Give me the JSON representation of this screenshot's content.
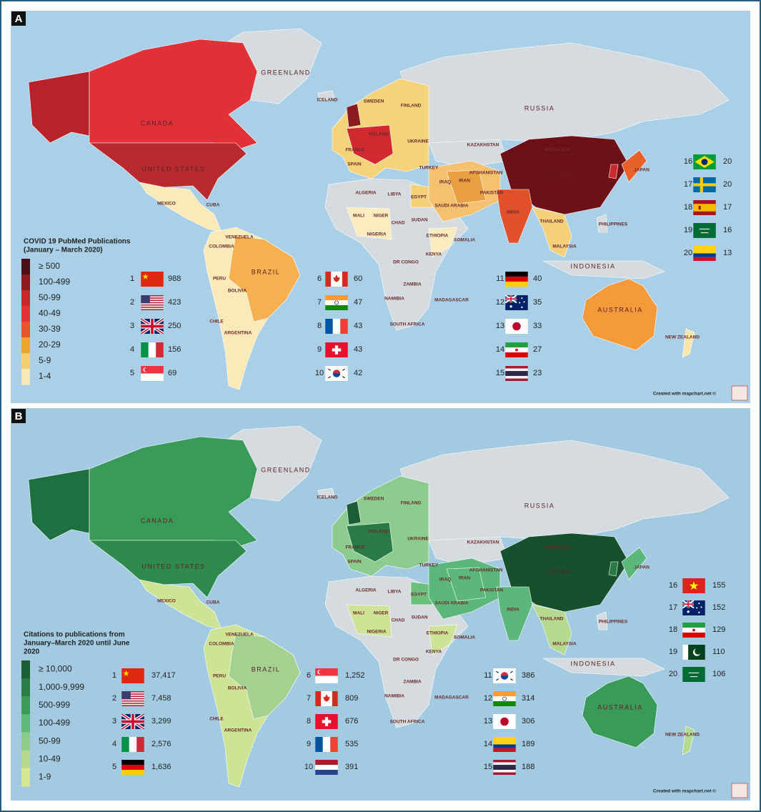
{
  "credit": "Created with mapchart.net ©",
  "map_labels": [
    "GREENLAND",
    "ICELAND",
    "CANADA",
    "UNITED STATES",
    "MEXICO",
    "CUBA",
    "VENEZUELA",
    "COLOMBIA",
    "PERU",
    "BRAZIL",
    "BOLIVIA",
    "CHILE",
    "ARGENTINA",
    "SWEDEN",
    "FINLAND",
    "POLAND",
    "UKRAINE",
    "FRANCE",
    "SPAIN",
    "TURKEY",
    "RUSSIA",
    "KAZAKHSTAN",
    "MONGOLIA",
    "CHINA",
    "IRAN",
    "IRAQ",
    "AFGHANISTAN",
    "PAKISTAN",
    "INDIA",
    "JAPAN",
    "PHILIPPINES",
    "ALGERIA",
    "LIBYA",
    "EGYPT",
    "MALI",
    "NIGER",
    "CHAD",
    "SUDAN",
    "NIGERIA",
    "ETHIOPIA",
    "SOMALIA",
    "KENYA",
    "DR CONGO",
    "SAUDI ARABIA",
    "THAILAND",
    "MALAYSIA",
    "INDONESIA",
    "ZAMBIA",
    "NAMIBIA",
    "MADAGASCAR",
    "SOUTH AFRICA",
    "AUSTRALIA",
    "NEW ZEALAND"
  ],
  "panels": [
    {
      "letter": "A",
      "legend": {
        "title_lines": [
          "COVID 19 PubMed Publications",
          "(January – March 2020)"
        ],
        "classes": [
          "≥ 500",
          "100-499",
          "50-99",
          "40-49",
          "30-39",
          "20-29",
          "5-9",
          "1-4"
        ],
        "colors": [
          "#4a0f14",
          "#8b1a20",
          "#c8252c",
          "#e43238",
          "#e5562c",
          "#e9a62a",
          "#f4cf72",
          "#fbe8b8"
        ]
      },
      "ranking": [
        {
          "rank": 1,
          "value": 988
        },
        {
          "rank": 2,
          "value": 423
        },
        {
          "rank": 3,
          "value": 250
        },
        {
          "rank": 4,
          "value": 156
        },
        {
          "rank": 5,
          "value": 69
        },
        {
          "rank": 6,
          "value": 60
        },
        {
          "rank": 7,
          "value": 47
        },
        {
          "rank": 8,
          "value": 43
        },
        {
          "rank": 9,
          "value": 43
        },
        {
          "rank": 10,
          "value": 42
        },
        {
          "rank": 11,
          "value": 40
        },
        {
          "rank": 12,
          "value": 35
        },
        {
          "rank": 13,
          "value": 33
        },
        {
          "rank": 14,
          "value": 27
        },
        {
          "rank": 15,
          "value": 23
        },
        {
          "rank": 16,
          "value": 20
        },
        {
          "rank": 17,
          "value": 20
        },
        {
          "rank": 18,
          "value": 17
        },
        {
          "rank": 19,
          "value": 16
        },
        {
          "rank": 20,
          "value": 13
        }
      ]
    },
    {
      "letter": "B",
      "legend": {
        "title_lines": [
          "Citations to publications from",
          "January–March 2020 until June",
          "2020"
        ],
        "classes": [
          "≥ 10,000",
          "1,000-9,999",
          "500-999",
          "100-499",
          "50-99",
          "10-49",
          "1-9"
        ],
        "colors": [
          "#1b5e35",
          "#2b7c47",
          "#3c9b5b",
          "#5db97a",
          "#8dcb8c",
          "#b6d98f",
          "#d6e792"
        ]
      },
      "ranking": [
        {
          "rank": 1,
          "value": "37,417"
        },
        {
          "rank": 2,
          "value": "7,458"
        },
        {
          "rank": 3,
          "value": "3,299"
        },
        {
          "rank": 4,
          "value": "2,576"
        },
        {
          "rank": 5,
          "value": "1,636"
        },
        {
          "rank": 6,
          "value": "1,252"
        },
        {
          "rank": 7,
          "value": 809
        },
        {
          "rank": 8,
          "value": 676
        },
        {
          "rank": 9,
          "value": 535
        },
        {
          "rank": 10,
          "value": 391
        },
        {
          "rank": 11,
          "value": 386
        },
        {
          "rank": 12,
          "value": 314
        },
        {
          "rank": 13,
          "value": 306
        },
        {
          "rank": 14,
          "value": 189
        },
        {
          "rank": 15,
          "value": 188
        },
        {
          "rank": 16,
          "value": 155
        },
        {
          "rank": 17,
          "value": 152
        },
        {
          "rank": 18,
          "value": 129
        },
        {
          "rank": 19,
          "value": 110
        },
        {
          "rank": 20,
          "value": 106
        }
      ]
    }
  ]
}
